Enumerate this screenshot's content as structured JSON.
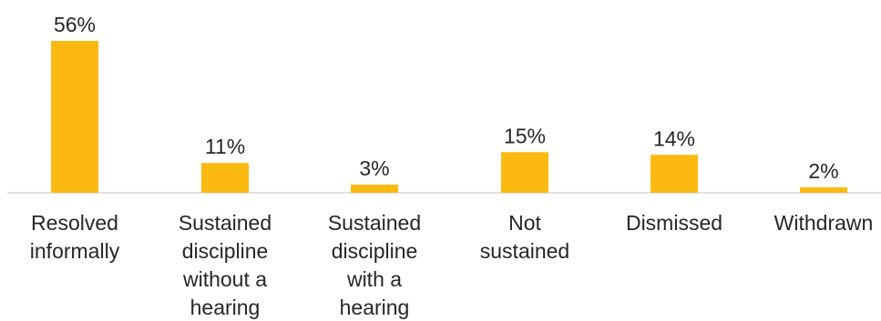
{
  "chart_data": {
    "type": "bar",
    "title": "",
    "xlabel": "",
    "ylabel": "",
    "ylim": [
      0,
      56
    ],
    "grid": false,
    "legend": "none",
    "bar_color": "#FCB912",
    "axis_color": "#D9D9D9",
    "categories": [
      [
        "Resolved",
        "informally"
      ],
      [
        "Sustained",
        "discipline",
        "without a",
        "hearing"
      ],
      [
        "Sustained",
        "discipline",
        "with a",
        "hearing"
      ],
      [
        "Not",
        "sustained"
      ],
      [
        "Dismissed"
      ],
      [
        "Withdrawn"
      ]
    ],
    "values": [
      56,
      11,
      3,
      15,
      14,
      2
    ],
    "data_labels": [
      "56%",
      "11%",
      "3%",
      "15%",
      "14%",
      "2%"
    ]
  }
}
